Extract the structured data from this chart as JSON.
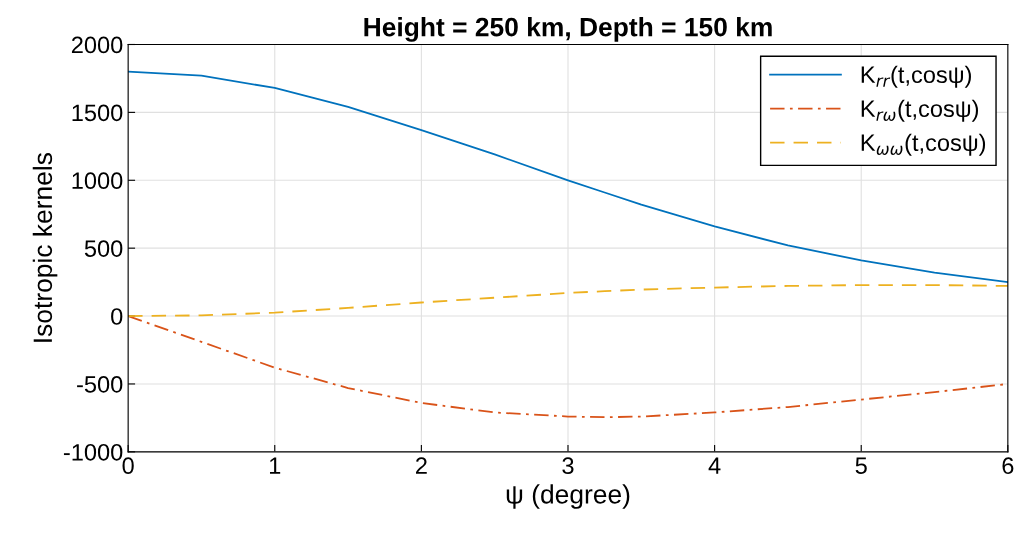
{
  "chart_data": {
    "type": "line",
    "title": "Height = 250 km, Depth = 150 km",
    "xlabel": "ψ (degree)",
    "ylabel": "Isotropic kernels",
    "x": [
      0,
      0.5,
      1,
      1.5,
      2,
      2.5,
      3,
      3.25,
      3.5,
      4,
      4.5,
      5,
      5.5,
      6
    ],
    "series": [
      {
        "name": "K$_{rr}$(t,cosψ)",
        "color": "#0072bd",
        "line_style": "solid",
        "values": [
          1800,
          1770,
          1680,
          1540,
          1370,
          1190,
          1000,
          910,
          820,
          660,
          520,
          410,
          320,
          250
        ]
      },
      {
        "name": "K$_{rω}$(t,cosψ)",
        "color": "#d95319",
        "line_style": "dashdot",
        "values": [
          0,
          -190,
          -380,
          -530,
          -640,
          -710,
          -740,
          -745,
          -740,
          -710,
          -670,
          -615,
          -560,
          -500
        ]
      },
      {
        "name": "K$_{ωω}$(t,cosψ)",
        "color": "#edb120",
        "line_style": "dashed",
        "values": [
          0,
          5,
          25,
          60,
          100,
          135,
          170,
          183,
          195,
          210,
          222,
          228,
          228,
          222
        ]
      }
    ],
    "xlim": [
      0,
      6
    ],
    "xticks": [
      0,
      1,
      2,
      3,
      4,
      5,
      6
    ],
    "ylim": [
      -1000,
      2000
    ],
    "yticks": [
      -1000,
      -500,
      0,
      500,
      1000,
      1500,
      2000
    ],
    "grid": true,
    "legend": "top right"
  }
}
